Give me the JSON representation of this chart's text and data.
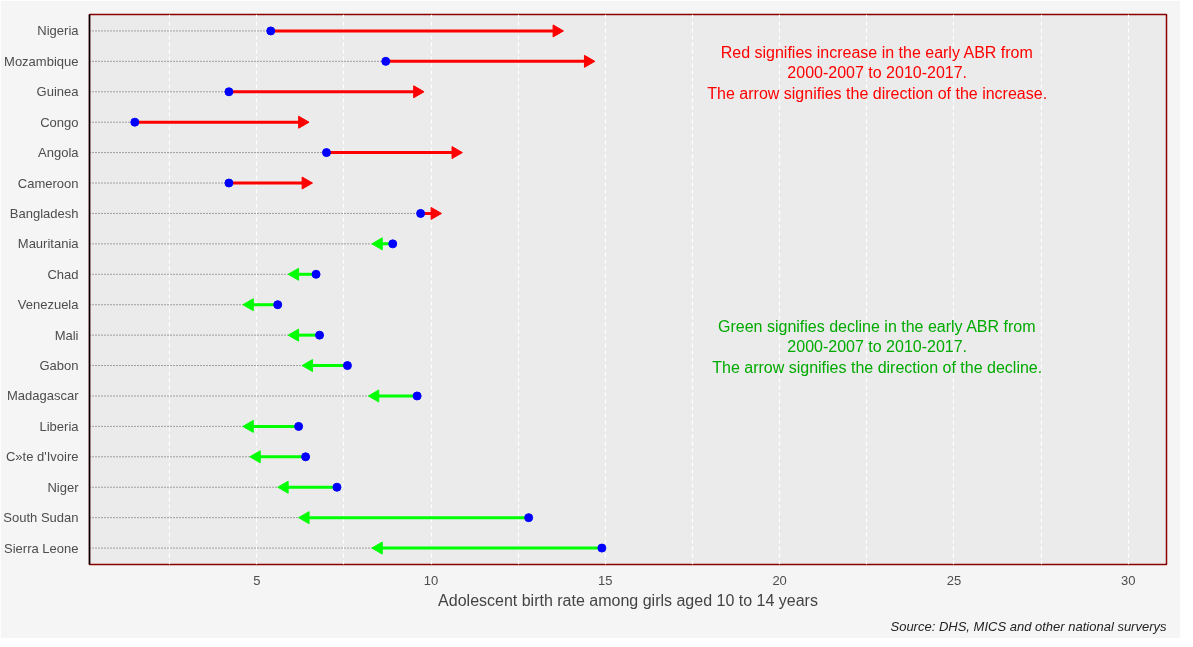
{
  "chart_data": {
    "type": "scatter",
    "orientation": "horizontal",
    "xlabel": "Adolescent birth rate among girls aged 10 to 14 years",
    "categories": [
      "Nigeria",
      "Mozambique",
      "Guinea",
      "Congo",
      "Angola",
      "Cameroon",
      "Bangladesh",
      "Mauritania",
      "Chad",
      "Venezuela",
      "Mali",
      "Gabon",
      "Madagascar",
      "Liberia",
      "C»te d'Ivoire",
      "Niger",
      "South Sudan",
      "Sierra Leone"
    ],
    "series": [
      {
        "type": "lollipop",
        "color": "#0000ff",
        "marker": "circle",
        "values": [
          5.4,
          8.7,
          4.2,
          1.5,
          7.0,
          4.2,
          9.7,
          8.9,
          6.7,
          5.6,
          6.8,
          7.6,
          9.6,
          6.2,
          6.4,
          7.3,
          12.8,
          14.9
        ]
      },
      {
        "marker": "triangle",
        "values": [
          13.6,
          14.5,
          9.6,
          6.3,
          10.7,
          6.4,
          10.1,
          8.5,
          6.1,
          4.8,
          6.1,
          6.5,
          8.4,
          4.8,
          5.0,
          5.8,
          6.4,
          8.5
        ],
        "colors": [
          "#ff0000",
          "#ff0000",
          "#ff0000",
          "#ff0000",
          "#ff0000",
          "#ff0000",
          "#ff0000",
          "#00ff00",
          "#00ff00",
          "#00ff00",
          "#00ff00",
          "#00ff00",
          "#00ff00",
          "#00ff00",
          "#00ff00",
          "#00ff00",
          "#00ff00",
          "#00ff00"
        ]
      }
    ],
    "xlim": [
      0.2,
      31.1
    ],
    "xticks": [
      {
        "value": 2.5,
        "label": null
      },
      5,
      {
        "value": 7.5,
        "label": null
      },
      10,
      {
        "value": 12.5,
        "label": null
      },
      15,
      {
        "value": 17.5,
        "label": null
      },
      20,
      {
        "value": 22.5,
        "label": null
      },
      25,
      {
        "value": 27.5,
        "label": null
      },
      30
    ],
    "grid": "x",
    "annotations": [
      "Red signifies increase in the early ABR from\n2000-2007 to 2010-2017.\nThe arrow signifies the direction of the increase.",
      "Green signifies decline in the early ABR from\n2000-2007 to 2010-2017.\nThe arrow signifies the direction of the decline.",
      "Source: DHS, MICS and other national surverys"
    ]
  }
}
